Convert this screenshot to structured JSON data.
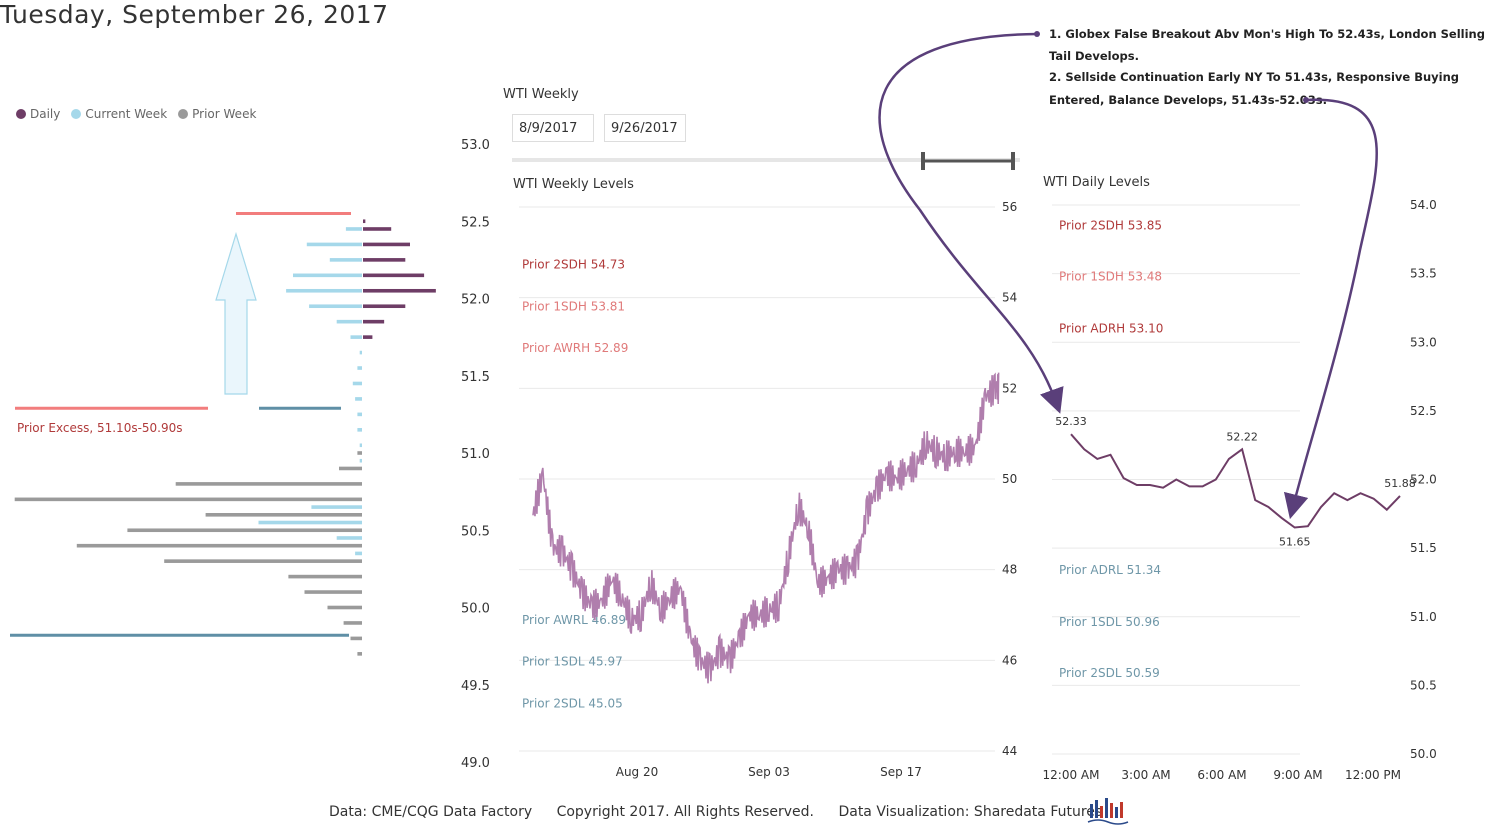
{
  "title": "Tuesday, September 26, 2017",
  "legend": [
    {
      "label": "Daily",
      "color": "#6e3d66"
    },
    {
      "label": "Current Week",
      "color": "#a5d8ea"
    },
    {
      "label": "Prior Week",
      "color": "#9a9a9a"
    }
  ],
  "colors": {
    "daily": "#6e3d66",
    "current": "#a5d8ea",
    "prior": "#9a9a9a",
    "excess": "#f27d7d",
    "low_line": "#5f8fa6",
    "weekly_line": "#b07ead",
    "upper_label": "#b03a3a",
    "sd1_label": "#e07a7a",
    "lower_label": "#6f97a8"
  },
  "profile": {
    "axis_ticks": [
      "53.0",
      "52.5",
      "52.0",
      "51.5",
      "51.0",
      "50.5",
      "50.0",
      "49.5",
      "49.0"
    ],
    "excess_label": "Prior Excess, 51.10s-50.90s",
    "excess_value": "51.10-50.90",
    "daily_tpo": [
      {
        "price": 52.5,
        "count": 1
      },
      {
        "price": 52.45,
        "count": 12
      },
      {
        "price": 52.35,
        "count": 20
      },
      {
        "price": 52.25,
        "count": 18
      },
      {
        "price": 52.15,
        "count": 26
      },
      {
        "price": 52.05,
        "count": 31
      },
      {
        "price": 51.95,
        "count": 18
      },
      {
        "price": 51.85,
        "count": 9
      },
      {
        "price": 51.75,
        "count": 4
      }
    ],
    "current_week_tpo": [
      {
        "price": 52.45,
        "count": 7
      },
      {
        "price": 52.35,
        "count": 24
      },
      {
        "price": 52.25,
        "count": 14
      },
      {
        "price": 52.15,
        "count": 30
      },
      {
        "price": 52.05,
        "count": 33
      },
      {
        "price": 51.95,
        "count": 23
      },
      {
        "price": 51.85,
        "count": 11
      },
      {
        "price": 51.75,
        "count": 5
      },
      {
        "price": 51.65,
        "count": 1
      },
      {
        "price": 51.55,
        "count": 2
      },
      {
        "price": 51.45,
        "count": 4
      },
      {
        "price": 51.35,
        "count": 3
      },
      {
        "price": 51.25,
        "count": 2
      },
      {
        "price": 51.15,
        "count": 2
      },
      {
        "price": 51.05,
        "count": 1
      },
      {
        "price": 50.95,
        "count": 1
      },
      {
        "price": 50.65,
        "count": 22
      },
      {
        "price": 50.55,
        "count": 45
      },
      {
        "price": 50.45,
        "count": 11
      },
      {
        "price": 50.35,
        "count": 3
      }
    ],
    "prior_week_tpo": [
      {
        "price": 51.0,
        "count": 2
      },
      {
        "price": 50.9,
        "count": 10
      },
      {
        "price": 50.8,
        "count": 81
      },
      {
        "price": 50.7,
        "count": 151
      },
      {
        "price": 50.6,
        "count": 68
      },
      {
        "price": 50.5,
        "count": 102
      },
      {
        "price": 50.4,
        "count": 124
      },
      {
        "price": 50.3,
        "count": 86
      },
      {
        "price": 50.2,
        "count": 32
      },
      {
        "price": 50.1,
        "count": 25
      },
      {
        "price": 50.0,
        "count": 15
      },
      {
        "price": 49.9,
        "count": 8
      },
      {
        "price": 49.8,
        "count": 5
      },
      {
        "price": 49.7,
        "count": 2
      }
    ]
  },
  "weekly_panel": {
    "header": "WTI Weekly",
    "date_start": "8/9/2017",
    "date_end": "9/26/2017",
    "chart_title": "WTI Weekly Levels"
  },
  "daily_panel": {
    "chart_title": "WTI Daily Levels"
  },
  "notes": [
    "1. Globex False Breakout Abv Mon's High To 52.43s, London Selling",
    "Tail Develops.",
    "2. Sellside Continuation Early NY To 51.43s, Responsive Buying",
    "Entered, Balance Develops, 51.43s-52.03s."
  ],
  "footer": {
    "source": "Data: CME/CQG Data Factory",
    "copyright": "Copyright 2017. All Rights Reserved.",
    "credit": "Data Visualization: Sharedata Futures"
  },
  "chart_data": [
    {
      "type": "line",
      "title": "WTI Weekly Levels",
      "x_ticks": [
        "Aug 20",
        "Sep 03",
        "Sep 17"
      ],
      "xlim": [
        "2017-08-10",
        "2017-09-26"
      ],
      "ylim": [
        44,
        56
      ],
      "y_ticks": [
        44,
        46,
        48,
        50,
        52,
        54,
        56
      ],
      "levels": [
        {
          "label": "Prior 2SDH 54.73",
          "value": 54.73
        },
        {
          "label": "Prior 1SDH 53.81",
          "value": 53.81
        },
        {
          "label": "Prior AWRH 52.89",
          "value": 52.89
        },
        {
          "label": "Prior AWRL 46.89",
          "value": 46.89
        },
        {
          "label": "Prior 1SDL 45.97",
          "value": 45.97
        },
        {
          "label": "Prior 2SDL 45.05",
          "value": 45.05
        }
      ],
      "series": [
        {
          "x": [
            "2017-08-10",
            "2017-08-11",
            "2017-08-12",
            "2017-08-13",
            "2017-08-14",
            "2017-08-15",
            "2017-08-16",
            "2017-08-17",
            "2017-08-18",
            "2017-08-19",
            "2017-08-20",
            "2017-08-21",
            "2017-08-22",
            "2017-08-23",
            "2017-08-24",
            "2017-08-25",
            "2017-08-26",
            "2017-08-27",
            "2017-08-28",
            "2017-08-29",
            "2017-08-30",
            "2017-08-31",
            "2017-09-01",
            "2017-09-02",
            "2017-09-03",
            "2017-09-04",
            "2017-09-05",
            "2017-09-06",
            "2017-09-07",
            "2017-09-08",
            "2017-09-09",
            "2017-09-10",
            "2017-09-11",
            "2017-09-12",
            "2017-09-13",
            "2017-09-14",
            "2017-09-15",
            "2017-09-16",
            "2017-09-17",
            "2017-09-18",
            "2017-09-19",
            "2017-09-20",
            "2017-09-21",
            "2017-09-22",
            "2017-09-23",
            "2017-09-24",
            "2017-09-25",
            "2017-09-26"
          ],
          "values": [
            49.2,
            50.1,
            48.5,
            48.4,
            48.0,
            47.5,
            47.2,
            47.3,
            47.8,
            47.4,
            46.9,
            47.0,
            47.7,
            47.1,
            47.4,
            47.6,
            46.5,
            46.0,
            45.8,
            46.2,
            46.0,
            46.5,
            47.0,
            47.0,
            47.1,
            47.2,
            48.3,
            49.4,
            48.9,
            47.7,
            47.8,
            48.0,
            48.0,
            48.2,
            49.3,
            49.8,
            50.1,
            50.0,
            50.2,
            50.3,
            50.8,
            50.6,
            50.5,
            50.6,
            50.6,
            50.7,
            51.8,
            52.0
          ]
        }
      ]
    },
    {
      "type": "line",
      "title": "WTI Daily Levels",
      "x_ticks": [
        "12:00 AM",
        "3:00 AM",
        "6:00 AM",
        "9:00 AM",
        "12:00 PM"
      ],
      "xlim": [
        0,
        13
      ],
      "ylim": [
        50.0,
        54.0
      ],
      "y_ticks": [
        50.0,
        50.5,
        51.0,
        51.5,
        52.0,
        52.5,
        53.0,
        53.5,
        54.0
      ],
      "levels": [
        {
          "label": "Prior 2SDH 53.85",
          "value": 53.85
        },
        {
          "label": "Prior 1SDH 53.48",
          "value": 53.48
        },
        {
          "label": "Prior ADRH 53.10",
          "value": 53.1
        },
        {
          "label": "Prior ADRL 51.34",
          "value": 51.34
        },
        {
          "label": "Prior 1SDL 50.96",
          "value": 50.96
        },
        {
          "label": "Prior 2SDL 50.59",
          "value": 50.59
        }
      ],
      "series": [
        {
          "x": [
            0.5,
            1.0,
            1.5,
            2.0,
            2.5,
            3.0,
            3.5,
            4.0,
            4.5,
            5.0,
            5.5,
            6.0,
            6.5,
            7.0,
            7.5,
            8.0,
            8.5,
            9.0,
            9.5,
            10.0,
            10.5,
            11.0,
            11.5,
            12.0,
            12.5,
            13.0
          ],
          "values": [
            52.33,
            52.22,
            52.15,
            52.18,
            52.01,
            51.96,
            51.96,
            51.94,
            52.0,
            51.95,
            51.95,
            52.0,
            52.15,
            52.22,
            51.85,
            51.8,
            51.72,
            51.65,
            51.66,
            51.8,
            51.9,
            51.85,
            51.9,
            51.86,
            51.78,
            51.88
          ],
          "point_labels": [
            {
              "x": 0.5,
              "value": 52.33,
              "text": "52.33"
            },
            {
              "x": 7.0,
              "value": 52.22,
              "text": "52.22"
            },
            {
              "x": 9.0,
              "value": 51.65,
              "text": "51.65"
            },
            {
              "x": 13.0,
              "value": 51.88,
              "text": "51.88"
            }
          ]
        }
      ]
    }
  ]
}
